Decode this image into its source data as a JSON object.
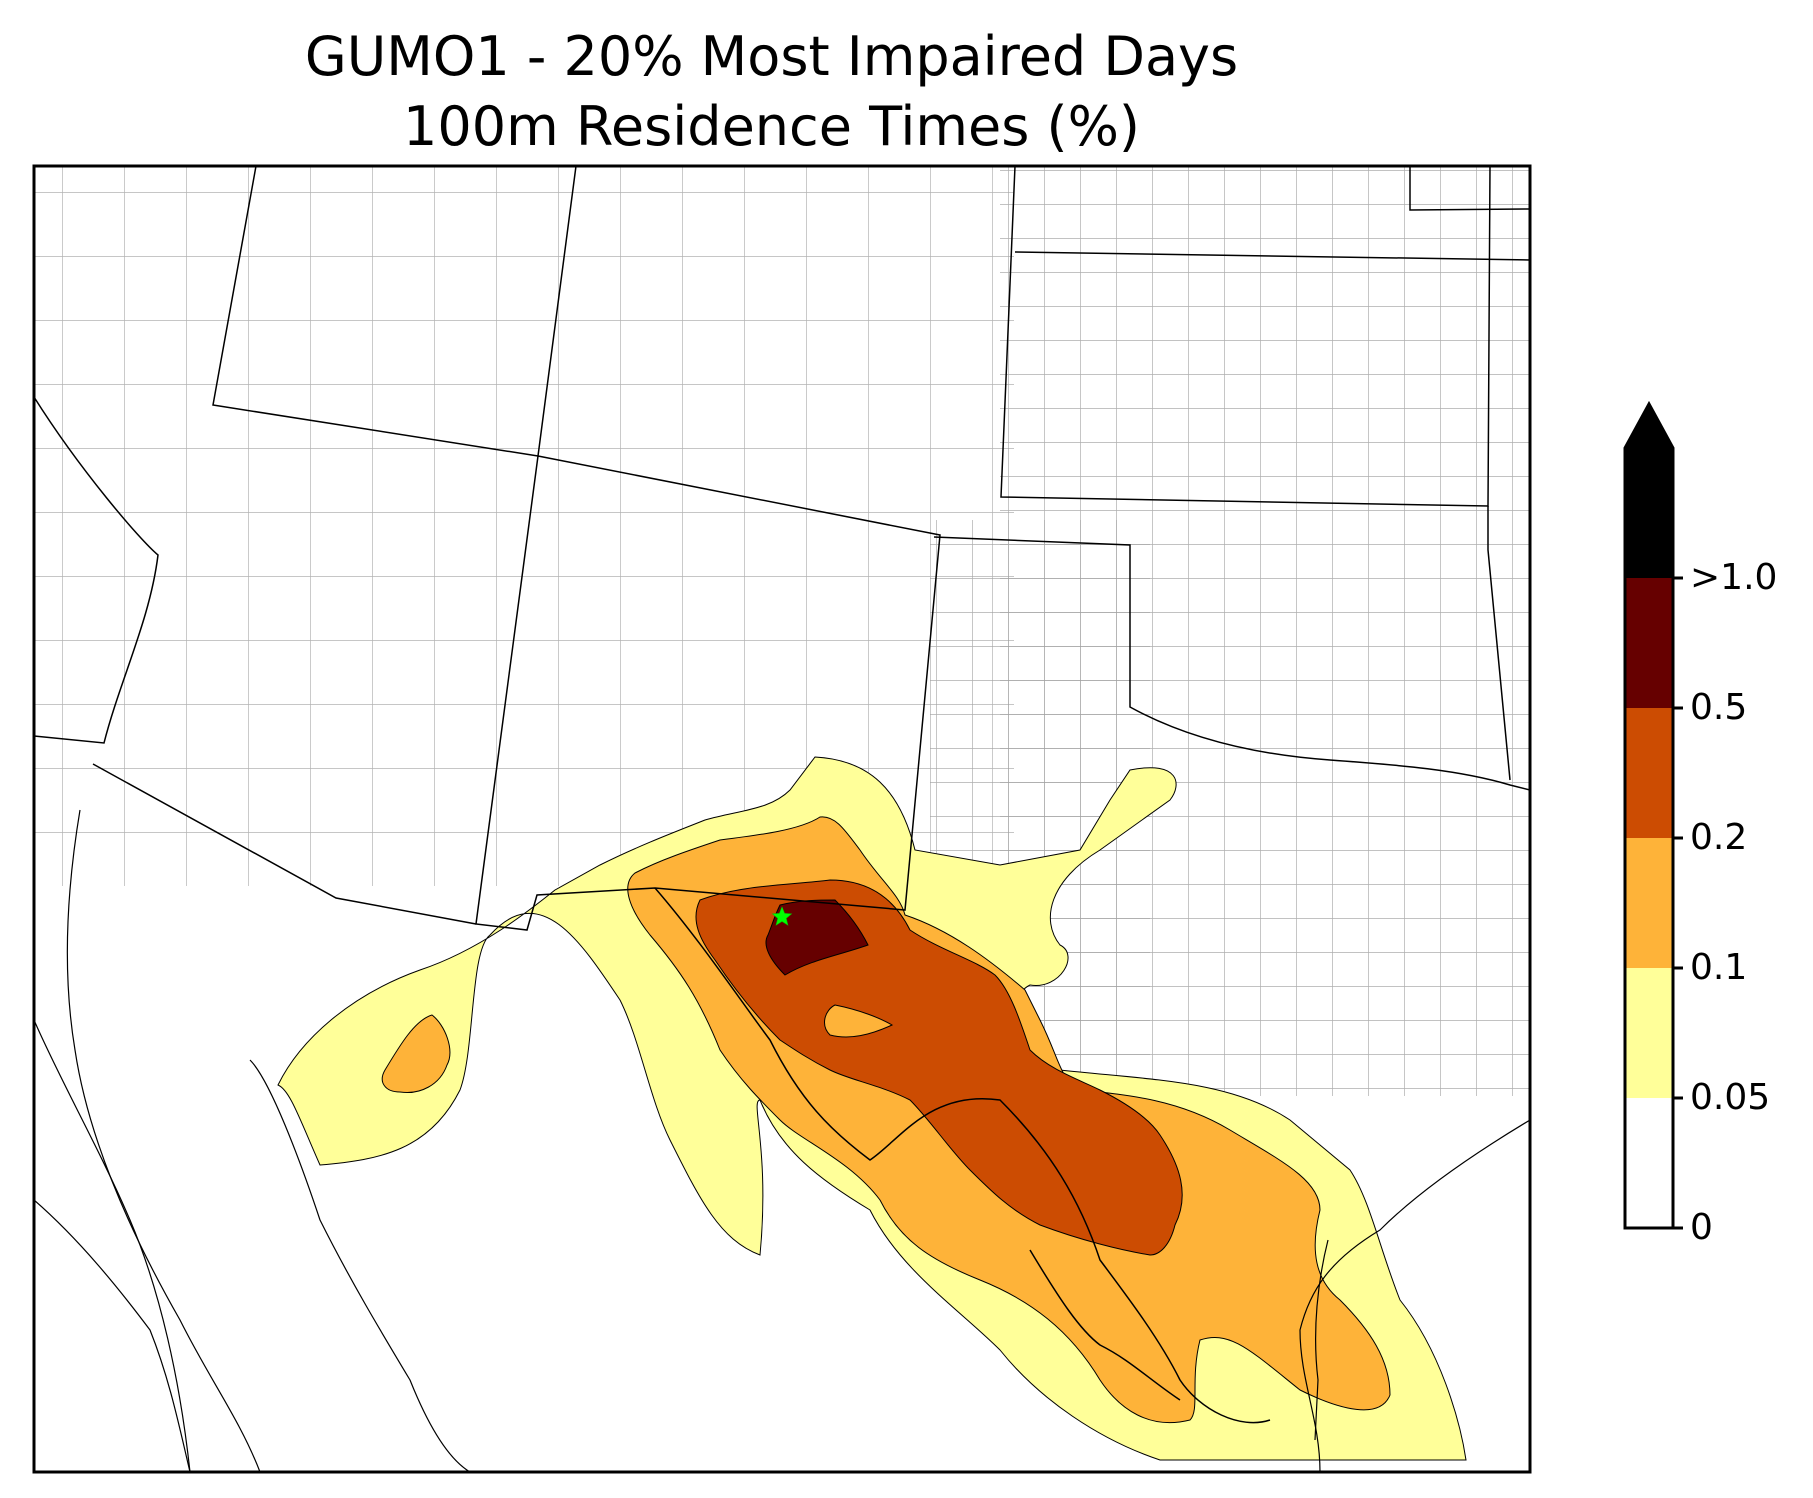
{
  "title": {
    "line1": "GUMO1 - 20% Most Impaired Days",
    "line2": "100m Residence Times (%)"
  },
  "site_marker": {
    "name": "GUMO1",
    "color": "#00ff00",
    "symbol": "star"
  },
  "colorbar": {
    "extend": "max",
    "levels": [
      "0",
      "0.05",
      "0.1",
      "0.2",
      "0.5",
      ">1.0"
    ],
    "colors": [
      "#ffffff",
      "#ffff99",
      "#feb339",
      "#cc4c02",
      "#660000",
      "#000000"
    ]
  },
  "colors": {
    "state_border": "#000000",
    "county_border": "#a0a0a0",
    "coastline": "#000000"
  }
}
